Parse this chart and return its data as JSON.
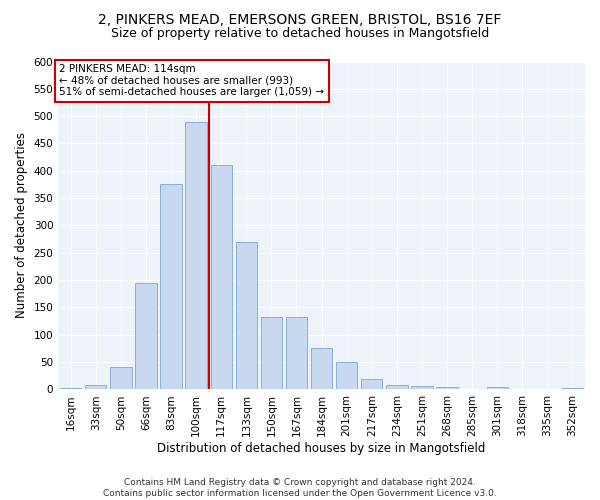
{
  "title1": "2, PINKERS MEAD, EMERSONS GREEN, BRISTOL, BS16 7EF",
  "title2": "Size of property relative to detached houses in Mangotsfield",
  "xlabel": "Distribution of detached houses by size in Mangotsfield",
  "ylabel": "Number of detached properties",
  "bar_labels": [
    "16sqm",
    "33sqm",
    "50sqm",
    "66sqm",
    "83sqm",
    "100sqm",
    "117sqm",
    "133sqm",
    "150sqm",
    "167sqm",
    "184sqm",
    "201sqm",
    "217sqm",
    "234sqm",
    "251sqm",
    "268sqm",
    "285sqm",
    "301sqm",
    "318sqm",
    "335sqm",
    "352sqm"
  ],
  "bar_values": [
    3,
    9,
    41,
    195,
    375,
    490,
    410,
    270,
    132,
    132,
    75,
    50,
    20,
    8,
    6,
    4,
    0,
    4,
    0,
    0,
    2
  ],
  "bar_color": "#c8d8ee",
  "bar_edge_color": "#8ab0d4",
  "vline_color": "#cc0000",
  "annotation_text": "2 PINKERS MEAD: 114sqm\n← 48% of detached houses are smaller (993)\n51% of semi-detached houses are larger (1,059) →",
  "annotation_box_color": "white",
  "annotation_box_edge_color": "#cc0000",
  "ylim": [
    0,
    600
  ],
  "yticks": [
    0,
    50,
    100,
    150,
    200,
    250,
    300,
    350,
    400,
    450,
    500,
    550,
    600
  ],
  "footer1": "Contains HM Land Registry data © Crown copyright and database right 2024.",
  "footer2": "Contains public sector information licensed under the Open Government Licence v3.0.",
  "title1_fontsize": 10,
  "title2_fontsize": 9,
  "axis_label_fontsize": 8.5,
  "tick_fontsize": 7.5,
  "annotation_fontsize": 7.5,
  "footer_fontsize": 6.5,
  "bg_color": "#eef2f9"
}
